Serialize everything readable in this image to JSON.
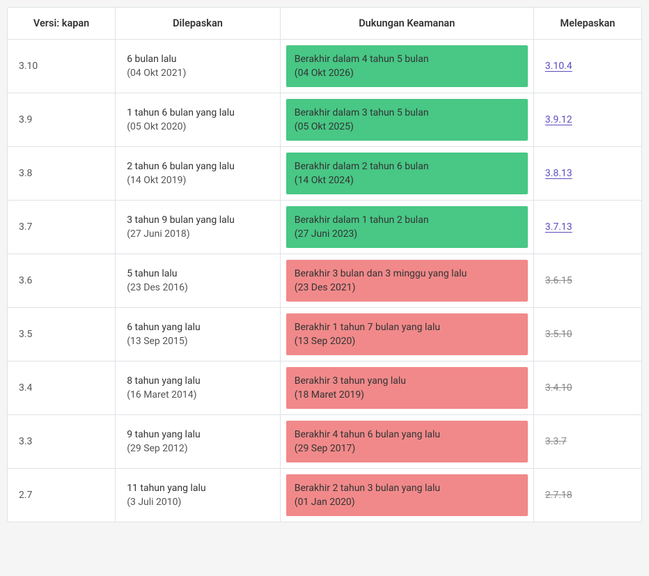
{
  "headers": {
    "version": "Versi: kapan",
    "released": "Dilepaskan",
    "support": "Dukungan Keamanan",
    "release": "Melepaskan"
  },
  "colors": {
    "support_active_bg": "#48c785",
    "support_expired_bg": "#f1898a",
    "link_color": "#5b4dbf",
    "expired_link_color": "#888",
    "border_color": "#dee2e6"
  },
  "rows": [
    {
      "version": "3.10",
      "released_text": "6 bulan lalu",
      "released_date": "(04 Okt 2021)",
      "support_text": "Berakhir dalam 4 tahun 5 bulan",
      "support_date": "(04 Okt 2026)",
      "support_status": "active",
      "release": "3.10.4",
      "release_expired": false
    },
    {
      "version": "3.9",
      "released_text": "1 tahun 6 bulan yang lalu",
      "released_date": "(05 Okt 2020)",
      "support_text": "Berakhir dalam 3 tahun 5 bulan",
      "support_date": "(05 Okt 2025)",
      "support_status": "active",
      "release": "3.9.12",
      "release_expired": false
    },
    {
      "version": "3.8",
      "released_text": "2 tahun 6 bulan yang lalu",
      "released_date": "(14 Okt 2019)",
      "support_text": "Berakhir dalam 2 tahun 6 bulan",
      "support_date": "(14 Okt 2024)",
      "support_status": "active",
      "release": "3.8.13",
      "release_expired": false
    },
    {
      "version": "3.7",
      "released_text": "3 tahun 9 bulan yang lalu",
      "released_date": "(27 Juni 2018)",
      "support_text": "Berakhir dalam 1 tahun 2 bulan",
      "support_date": "(27 Juni 2023)",
      "support_status": "active",
      "release": "3.7.13",
      "release_expired": false
    },
    {
      "version": "3.6",
      "released_text": "5 tahun lalu",
      "released_date": "(23 Des 2016)",
      "support_text": "Berakhir 3 bulan dan 3 minggu yang lalu",
      "support_date": "(23 Des 2021)",
      "support_status": "expired",
      "release": "3.6.15",
      "release_expired": true
    },
    {
      "version": "3.5",
      "released_text": "6 tahun yang lalu",
      "released_date": "(13 Sep 2015)",
      "support_text": "Berakhir 1 tahun 7 bulan yang lalu",
      "support_date": "(13 Sep 2020)",
      "support_status": "expired",
      "release": "3.5.10",
      "release_expired": true
    },
    {
      "version": "3.4",
      "released_text": "8 tahun yang lalu",
      "released_date": "(16 Maret 2014)",
      "support_text": "Berakhir 3 tahun yang lalu",
      "support_date": "(18 Maret 2019)",
      "support_status": "expired",
      "release": "3.4.10",
      "release_expired": true
    },
    {
      "version": "3.3",
      "released_text": "9 tahun yang lalu",
      "released_date": "(29 Sep 2012)",
      "support_text": "Berakhir 4 tahun 6 bulan yang lalu",
      "support_date": "(29 Sep 2017)",
      "support_status": "expired",
      "release": "3.3.7",
      "release_expired": true
    },
    {
      "version": "2.7",
      "released_text": "11 tahun yang lalu",
      "released_date": "(3 Juli 2010)",
      "support_text": "Berakhir 2 tahun 3 bulan yang lalu",
      "support_date": "(01 Jan 2020)",
      "support_status": "expired",
      "release": "2.7.18",
      "release_expired": true
    }
  ]
}
